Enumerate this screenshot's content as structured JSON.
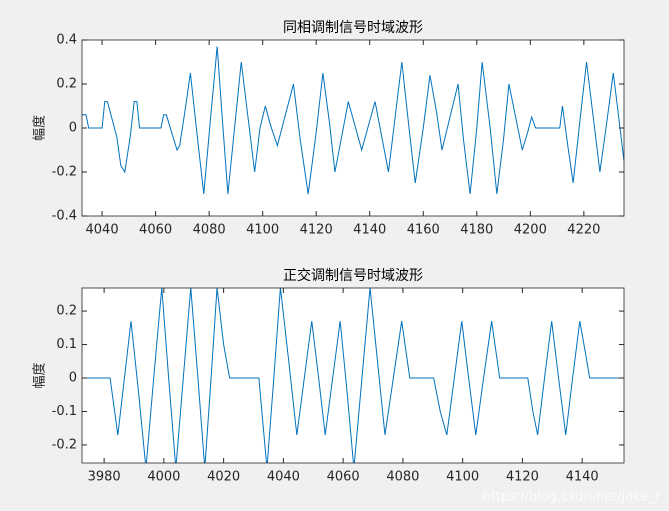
{
  "chart_data": [
    {
      "type": "line",
      "title": "同相调制信号时域波形",
      "ylabel": "幅度",
      "color": "#0072bd",
      "xlim": [
        4032.5,
        4235
      ],
      "ylim": [
        -0.4,
        0.4
      ],
      "xticks": [
        4040,
        4060,
        4080,
        4100,
        4120,
        4140,
        4160,
        4180,
        4200,
        4220
      ],
      "yticks": [
        -0.4,
        -0.2,
        0,
        0.2,
        0.4
      ],
      "x": [
        4032.5,
        4034,
        4035,
        4040,
        4041,
        4042,
        4045.5,
        4047,
        4048.5,
        4050.5,
        4052,
        4053,
        4054,
        4062,
        4063,
        4064,
        4066,
        4068,
        4069,
        4071,
        4073,
        4075.5,
        4078,
        4080.5,
        4083,
        4085,
        4087,
        4089.5,
        4092,
        4094.5,
        4097,
        4099,
        4101,
        4103,
        4105.5,
        4108.5,
        4111.5,
        4114,
        4117,
        4120,
        4122.5,
        4125,
        4127,
        4129.5,
        4132,
        4134.5,
        4137,
        4139.5,
        4142,
        4144.5,
        4147,
        4149.5,
        4152,
        4154.5,
        4157,
        4160,
        4162.5,
        4165,
        4167,
        4170,
        4173,
        4175,
        4177.5,
        4180,
        4182,
        4185,
        4187.5,
        4190,
        4192,
        4194.5,
        4197,
        4199,
        4200.5,
        4202,
        4211,
        4212,
        4214,
        4216,
        4218.5,
        4221,
        4223.5,
        4226,
        4228.5,
        4231,
        4233,
        4235
      ],
      "values": [
        0.06,
        0.06,
        0,
        0,
        0.12,
        0.12,
        -0.04,
        -0.17,
        -0.2,
        -0.04,
        0.12,
        0.12,
        0,
        0,
        0.06,
        0.06,
        -0.02,
        -0.1,
        -0.08,
        0.08,
        0.25,
        -0.03,
        -0.3,
        0.04,
        0.37,
        0.03,
        -0.3,
        0,
        0.3,
        0.05,
        -0.2,
        0,
        0.1,
        0.01,
        -0.08,
        0.06,
        0.2,
        -0.05,
        -0.3,
        -0.02,
        0.25,
        0.02,
        -0.2,
        -0.04,
        0.12,
        0.01,
        -0.1,
        0.01,
        0.12,
        -0.04,
        -0.2,
        0.05,
        0.3,
        0.02,
        -0.25,
        0,
        0.24,
        0.07,
        -0.1,
        0.05,
        0.2,
        -0.05,
        -0.3,
        0,
        0.3,
        0,
        -0.3,
        -0.05,
        0.2,
        0.05,
        -0.1,
        -0.02,
        0.05,
        0,
        0,
        0.1,
        -0.08,
        -0.25,
        0.03,
        0.3,
        0.05,
        -0.2,
        0.02,
        0.25,
        0.05,
        -0.15
      ]
    },
    {
      "type": "line",
      "title": "正交调制信号时域波形",
      "ylabel": "幅度",
      "color": "#0072bd",
      "xlim": [
        3972.6,
        4154
      ],
      "ylim": [
        -0.254,
        0.269
      ],
      "xticks": [
        3980,
        4000,
        4020,
        4040,
        4060,
        4080,
        4100,
        4120,
        4140
      ],
      "yticks": [
        -0.2,
        -0.1,
        0,
        0.1,
        0.2
      ],
      "x": [
        3972.6,
        3982,
        3984.6,
        3986.8,
        3989,
        3991.5,
        3994,
        3996.6,
        3999.3,
        4001.6,
        4004,
        4006.5,
        4009,
        4011.4,
        4013.7,
        4015.8,
        4017.8,
        4020,
        4022,
        4031.8,
        4034.5,
        4036.8,
        4039,
        4041.8,
        4044.5,
        4047,
        4049.5,
        4051.8,
        4054,
        4056.5,
        4059,
        4061.3,
        4063.6,
        4066.3,
        4069,
        4071.5,
        4074,
        4076.8,
        4079.6,
        4082.3,
        4090.3,
        4092.5,
        4094.7,
        4097.2,
        4099.7,
        4102,
        4104.4,
        4107,
        4109.7,
        4112.4,
        4121.8,
        4123.5,
        4125.1,
        4127.4,
        4129.8,
        4132.1,
        4134.5,
        4136.8,
        4139.2,
        4141,
        4142.5,
        4154
      ],
      "values": [
        0,
        0,
        -0.17,
        0,
        0.17,
        -0.04,
        -0.27,
        0,
        0.27,
        0,
        -0.27,
        0,
        0.27,
        0,
        -0.27,
        0,
        0.27,
        0.1,
        0,
        0,
        -0.27,
        0,
        0.27,
        0.05,
        -0.17,
        0,
        0.17,
        0,
        -0.17,
        0,
        0.17,
        -0.04,
        -0.27,
        0,
        0.27,
        0.05,
        -0.17,
        0,
        0.17,
        0,
        0,
        -0.1,
        -0.17,
        0,
        0.17,
        0,
        -0.17,
        0,
        0.17,
        0,
        0,
        -0.1,
        -0.17,
        0,
        0.17,
        0,
        -0.17,
        0,
        0.17,
        0.08,
        0,
        0
      ]
    }
  ],
  "watermark": "https://blog.csdn.net/joke_r"
}
